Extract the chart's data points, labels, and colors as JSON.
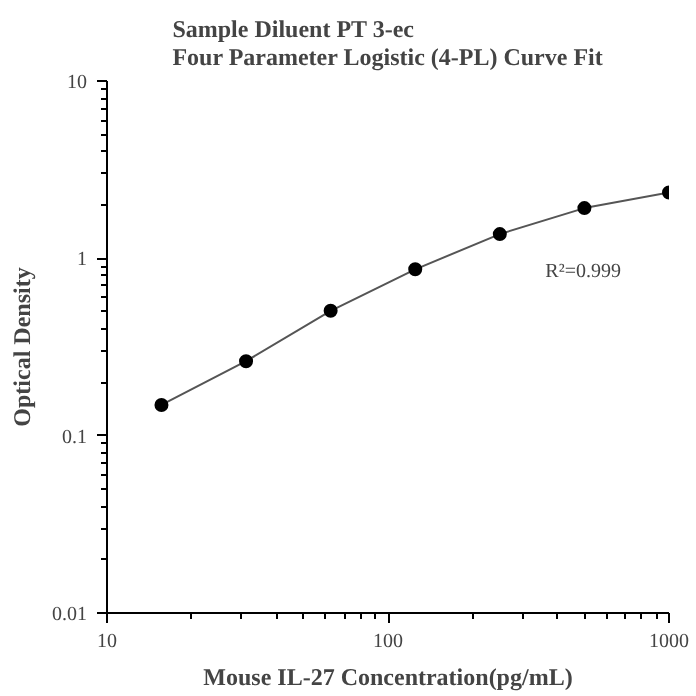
{
  "chart_data": {
    "type": "line",
    "title": "Sample Diluent PT 3-ec\nFour Parameter Logistic (4-PL) Curve Fit",
    "xlabel": "Mouse IL-27 Concentration(pg/mL)",
    "ylabel": "Optical Density",
    "x": [
      15.625,
      31.25,
      62.5,
      125,
      250,
      500,
      1000
    ],
    "series": [
      {
        "color": "#000000",
        "values": [
          0.149,
          0.263,
          0.506,
          0.867,
          1.37,
          1.92,
          2.35
        ]
      }
    ],
    "annotations": [
      "R²=0.999"
    ],
    "log": "xy",
    "xlim": [
      10,
      1000
    ],
    "ylim": [
      0.01,
      10
    ],
    "xticks": [
      10,
      100,
      1000
    ],
    "yticks": [
      0.01,
      0.1,
      1,
      10
    ],
    "marker": "circle",
    "line_style": "solid"
  }
}
